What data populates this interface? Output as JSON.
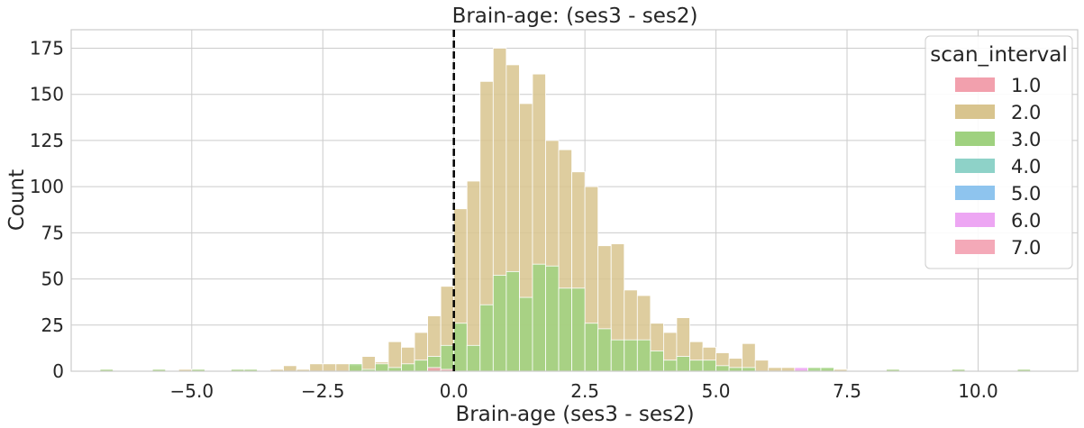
{
  "chart_data": {
    "type": "bar",
    "title": "Brain-age: (ses3 - ses2)",
    "xlabel": "Brain-age (ses3 - ses2)",
    "ylabel": "Count",
    "xlim": [
      -7.3,
      11.9
    ],
    "ylim": [
      0,
      185
    ],
    "xticks": [
      -5.0,
      -2.5,
      0.0,
      2.5,
      5.0,
      7.5,
      10.0
    ],
    "xtick_labels": [
      "−5.0",
      "−2.5",
      "0.0",
      "2.5",
      "5.0",
      "7.5",
      "10.0"
    ],
    "yticks": [
      0,
      25,
      50,
      75,
      100,
      125,
      150,
      175
    ],
    "ytick_labels": [
      "0",
      "25",
      "50",
      "75",
      "100",
      "125",
      "150",
      "175"
    ],
    "grid": true,
    "bin_width": 0.25,
    "vline_x": 0.0,
    "legend": {
      "title": "scan_interval",
      "placement": "top-right",
      "entries": [
        {
          "label": "1.0",
          "color": "#f2a0ad"
        },
        {
          "label": "2.0",
          "color": "#d8c48e"
        },
        {
          "label": "3.0",
          "color": "#9fd17f"
        },
        {
          "label": "4.0",
          "color": "#8ed2c8"
        },
        {
          "label": "5.0",
          "color": "#8ec4ee"
        },
        {
          "label": "6.0",
          "color": "#eda6f3"
        },
        {
          "label": "7.0",
          "color": "#f4a9b8"
        }
      ]
    },
    "series": [
      {
        "name": "2.0",
        "color": "#d8c48e",
        "bins": [
          {
            "x": -6.75,
            "y": 1
          },
          {
            "x": -5.75,
            "y": 1
          },
          {
            "x": -5.25,
            "y": 1
          },
          {
            "x": -5.0,
            "y": 1
          },
          {
            "x": -4.25,
            "y": 1
          },
          {
            "x": -4.0,
            "y": 1
          },
          {
            "x": -3.5,
            "y": 1
          },
          {
            "x": -3.25,
            "y": 3
          },
          {
            "x": -3.0,
            "y": 1
          },
          {
            "x": -2.75,
            "y": 4
          },
          {
            "x": -2.5,
            "y": 4
          },
          {
            "x": -2.25,
            "y": 4
          },
          {
            "x": -2.0,
            "y": 3
          },
          {
            "x": -1.75,
            "y": 8
          },
          {
            "x": -1.5,
            "y": 5
          },
          {
            "x": -1.25,
            "y": 16
          },
          {
            "x": -1.0,
            "y": 13
          },
          {
            "x": -0.75,
            "y": 21
          },
          {
            "x": -0.5,
            "y": 30
          },
          {
            "x": -0.25,
            "y": 46
          },
          {
            "x": 0.0,
            "y": 88
          },
          {
            "x": 0.25,
            "y": 103
          },
          {
            "x": 0.5,
            "y": 157
          },
          {
            "x": 0.75,
            "y": 175
          },
          {
            "x": 1.0,
            "y": 166
          },
          {
            "x": 1.25,
            "y": 145
          },
          {
            "x": 1.5,
            "y": 161
          },
          {
            "x": 1.75,
            "y": 125
          },
          {
            "x": 2.0,
            "y": 120
          },
          {
            "x": 2.25,
            "y": 108
          },
          {
            "x": 2.5,
            "y": 100
          },
          {
            "x": 2.75,
            "y": 68
          },
          {
            "x": 3.0,
            "y": 69
          },
          {
            "x": 3.25,
            "y": 44
          },
          {
            "x": 3.5,
            "y": 41
          },
          {
            "x": 3.75,
            "y": 26
          },
          {
            "x": 4.0,
            "y": 21
          },
          {
            "x": 4.25,
            "y": 29
          },
          {
            "x": 4.5,
            "y": 16
          },
          {
            "x": 4.75,
            "y": 13
          },
          {
            "x": 5.0,
            "y": 10
          },
          {
            "x": 5.25,
            "y": 7
          },
          {
            "x": 5.5,
            "y": 15
          },
          {
            "x": 5.75,
            "y": 6
          },
          {
            "x": 6.0,
            "y": 2
          },
          {
            "x": 6.25,
            "y": 2
          },
          {
            "x": 6.5,
            "y": 1
          },
          {
            "x": 7.0,
            "y": 1
          },
          {
            "x": 7.25,
            "y": 1
          },
          {
            "x": 8.25,
            "y": 1
          },
          {
            "x": 9.5,
            "y": 1
          },
          {
            "x": 10.75,
            "y": 1
          }
        ]
      },
      {
        "name": "3.0",
        "color": "#9fd17f",
        "bins": [
          {
            "x": -6.75,
            "y": 1
          },
          {
            "x": -5.75,
            "y": 1
          },
          {
            "x": -5.0,
            "y": 1
          },
          {
            "x": -4.25,
            "y": 1
          },
          {
            "x": -4.0,
            "y": 1
          },
          {
            "x": -2.0,
            "y": 4
          },
          {
            "x": -1.75,
            "y": 1
          },
          {
            "x": -1.5,
            "y": 4
          },
          {
            "x": -1.25,
            "y": 2
          },
          {
            "x": -1.0,
            "y": 4
          },
          {
            "x": -0.75,
            "y": 6
          },
          {
            "x": -0.5,
            "y": 8
          },
          {
            "x": -0.25,
            "y": 14
          },
          {
            "x": 0.0,
            "y": 26
          },
          {
            "x": 0.25,
            "y": 14
          },
          {
            "x": 0.5,
            "y": 36
          },
          {
            "x": 0.75,
            "y": 52
          },
          {
            "x": 1.0,
            "y": 54
          },
          {
            "x": 1.25,
            "y": 40
          },
          {
            "x": 1.5,
            "y": 58
          },
          {
            "x": 1.75,
            "y": 57
          },
          {
            "x": 2.0,
            "y": 45
          },
          {
            "x": 2.25,
            "y": 45
          },
          {
            "x": 2.5,
            "y": 26
          },
          {
            "x": 2.75,
            "y": 23
          },
          {
            "x": 3.0,
            "y": 17
          },
          {
            "x": 3.25,
            "y": 17
          },
          {
            "x": 3.5,
            "y": 17
          },
          {
            "x": 3.75,
            "y": 11
          },
          {
            "x": 4.0,
            "y": 6
          },
          {
            "x": 4.25,
            "y": 8
          },
          {
            "x": 4.5,
            "y": 6
          },
          {
            "x": 4.75,
            "y": 6
          },
          {
            "x": 5.0,
            "y": 3
          },
          {
            "x": 5.25,
            "y": 2
          },
          {
            "x": 5.5,
            "y": 2
          },
          {
            "x": 6.75,
            "y": 2
          },
          {
            "x": 7.0,
            "y": 2
          },
          {
            "x": 8.25,
            "y": 1
          },
          {
            "x": 9.5,
            "y": 1
          },
          {
            "x": 10.75,
            "y": 1
          }
        ]
      },
      {
        "name": "1.0",
        "color": "#f2a0ad",
        "bins": [
          {
            "x": -0.5,
            "y": 2
          },
          {
            "x": -0.25,
            "y": 1
          }
        ]
      },
      {
        "name": "6.0",
        "color": "#eda6f3",
        "bins": [
          {
            "x": 6.5,
            "y": 2
          }
        ]
      }
    ]
  }
}
